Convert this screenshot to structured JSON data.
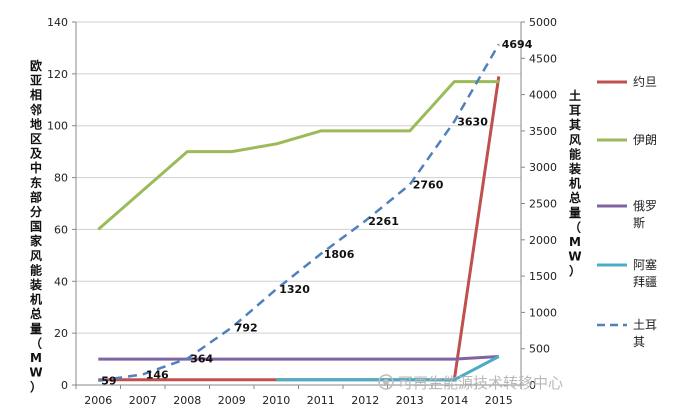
{
  "chart_data": {
    "type": "line",
    "x": [
      "2006",
      "2007",
      "2008",
      "2009",
      "2010",
      "2011",
      "2012",
      "2013",
      "2014",
      "2015"
    ],
    "ylabel_left": "欧亚相邻地区及中东部分国家风能装机总量（MW）",
    "ylabel_right": "土耳其风能装机总量（MW）",
    "ylim_left": [
      0,
      140
    ],
    "yticks_left": [
      0,
      20,
      40,
      60,
      80,
      100,
      120,
      140
    ],
    "ylim_right": [
      0,
      5000
    ],
    "yticks_right": [
      0,
      500,
      1000,
      1500,
      2000,
      2500,
      3000,
      3500,
      4000,
      4500,
      5000
    ],
    "grid": "horizontal",
    "legend_position": "right",
    "series": [
      {
        "name": "约旦",
        "axis": "left",
        "color": "#c0504d",
        "style": "solid",
        "values": [
          2,
          2,
          2,
          2,
          2,
          2,
          2,
          2,
          2,
          119
        ]
      },
      {
        "name": "伊朗",
        "axis": "left",
        "color": "#9bbb59",
        "style": "solid",
        "values": [
          60,
          75,
          90,
          90,
          93,
          98,
          98,
          98,
          117,
          117
        ]
      },
      {
        "name": "俄罗斯",
        "axis": "left",
        "color": "#8064a2",
        "style": "solid",
        "values": [
          10,
          10,
          10,
          10,
          10,
          10,
          10,
          10,
          10,
          11
        ]
      },
      {
        "name": "阿塞拜疆",
        "axis": "left",
        "color": "#4bacc6",
        "style": "solid",
        "values": [
          null,
          null,
          null,
          null,
          2,
          2,
          2,
          2,
          2,
          11
        ]
      },
      {
        "name": "土耳其",
        "axis": "right",
        "color": "#4f81bd",
        "style": "dashed",
        "values": [
          59,
          146,
          364,
          792,
          1320,
          1806,
          2261,
          2760,
          3630,
          4694
        ],
        "labels": [
          "59",
          "146",
          "364",
          "792",
          "1320",
          "1806",
          "2261",
          "2760",
          "3630",
          "4694"
        ]
      }
    ]
  },
  "watermark": {
    "text": "可再生能源技术转移中心"
  }
}
